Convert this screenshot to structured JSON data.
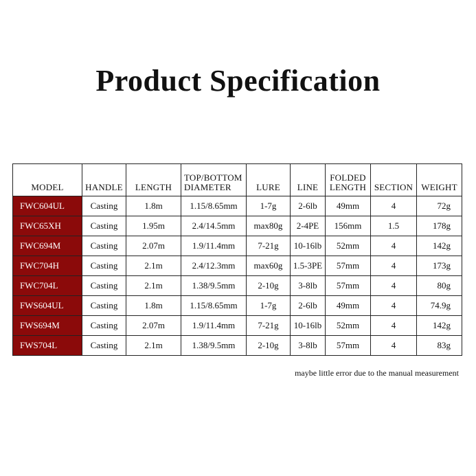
{
  "title": "Product Specification",
  "table": {
    "headers": [
      "MODEL",
      "HANDLE",
      "LENGTH",
      "TOP/BOTTOM DIAMETER",
      "LURE",
      "LINE",
      "FOLDED LENGTH",
      "SECTION",
      "WEIGHT"
    ],
    "rows": [
      [
        "FWC604UL",
        "Casting",
        "1.8m",
        "1.15/8.65mm",
        "1-7g",
        "2-6lb",
        "49mm",
        "4",
        "72g"
      ],
      [
        "FWC65XH",
        "Casting",
        "1.95m",
        "2.4/14.5mm",
        "max80g",
        "2-4PE",
        "156mm",
        "1.5",
        "178g"
      ],
      [
        "FWC694M",
        "Casting",
        "2.07m",
        "1.9/11.4mm",
        "7-21g",
        "10-16lb",
        "52mm",
        "4",
        "142g"
      ],
      [
        "FWC704H",
        "Casting",
        "2.1m",
        "2.4/12.3mm",
        "max60g",
        "1.5-3PE",
        "57mm",
        "4",
        "173g"
      ],
      [
        "FWC704L",
        "Casting",
        "2.1m",
        "1.38/9.5mm",
        "2-10g",
        "3-8lb",
        "57mm",
        "4",
        "80g"
      ],
      [
        "FWS604UL",
        "Casting",
        "1.8m",
        "1.15/8.65mm",
        "1-7g",
        "2-6lb",
        "49mm",
        "4",
        "74.9g"
      ],
      [
        "FWS694M",
        "Casting",
        "2.07m",
        "1.9/11.4mm",
        "7-21g",
        "10-16lb",
        "52mm",
        "4",
        "142g"
      ],
      [
        "FWS704L",
        "Casting",
        "2.1m",
        "1.38/9.5mm",
        "2-10g",
        "3-8lb",
        "57mm",
        "4",
        "83g"
      ]
    ]
  },
  "note": "maybe little error due to the manual measurement",
  "colors": {
    "model_cell": "#8b0a0a"
  }
}
